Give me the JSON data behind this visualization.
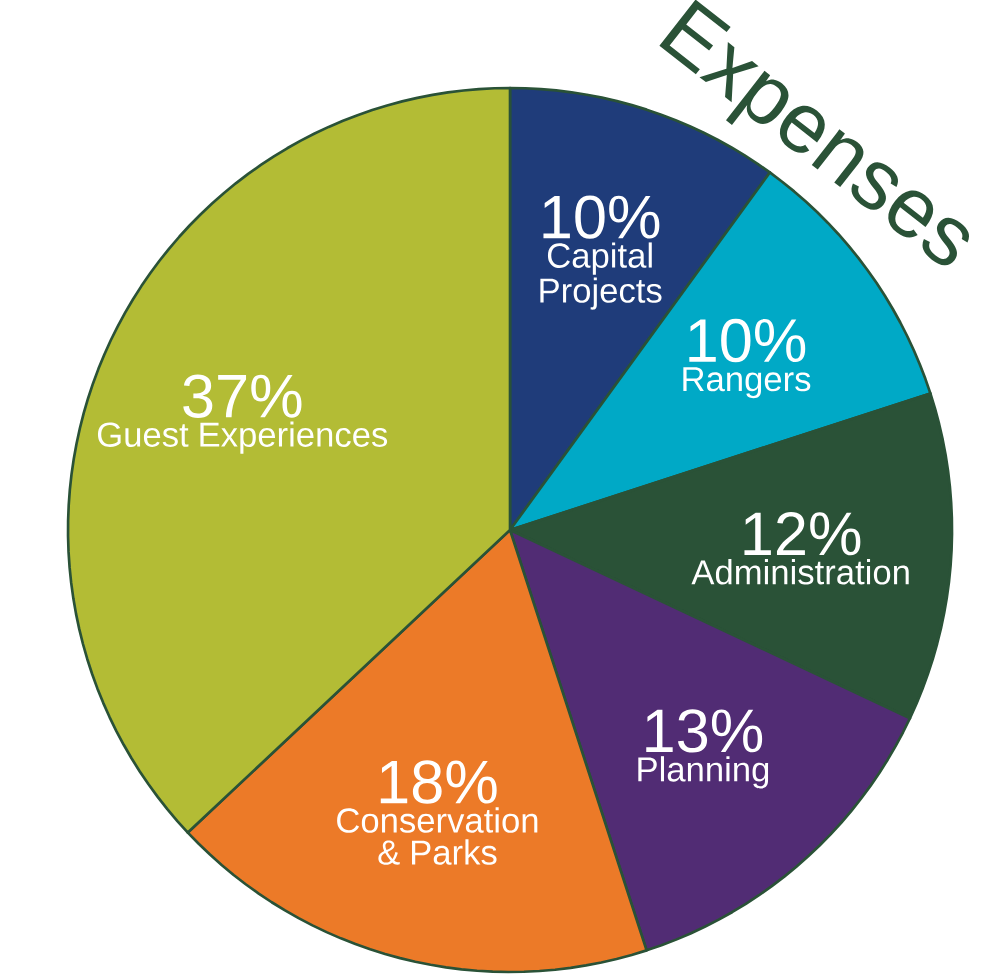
{
  "chart_data": {
    "type": "pie",
    "title": "Expenses",
    "categories": [
      "Capital Projects",
      "Rangers",
      "Administration",
      "Planning",
      "Conservation & Parks",
      "Guest Experiences"
    ],
    "values": [
      10,
      10,
      12,
      13,
      18,
      37
    ],
    "value_labels": [
      "10%",
      "10%",
      "12%",
      "13%",
      "18%",
      "37%"
    ],
    "colors": [
      "#1f3c7a",
      "#00a9c6",
      "#2a5237",
      "#512c74",
      "#ec7a28",
      "#b3bc35"
    ]
  }
}
